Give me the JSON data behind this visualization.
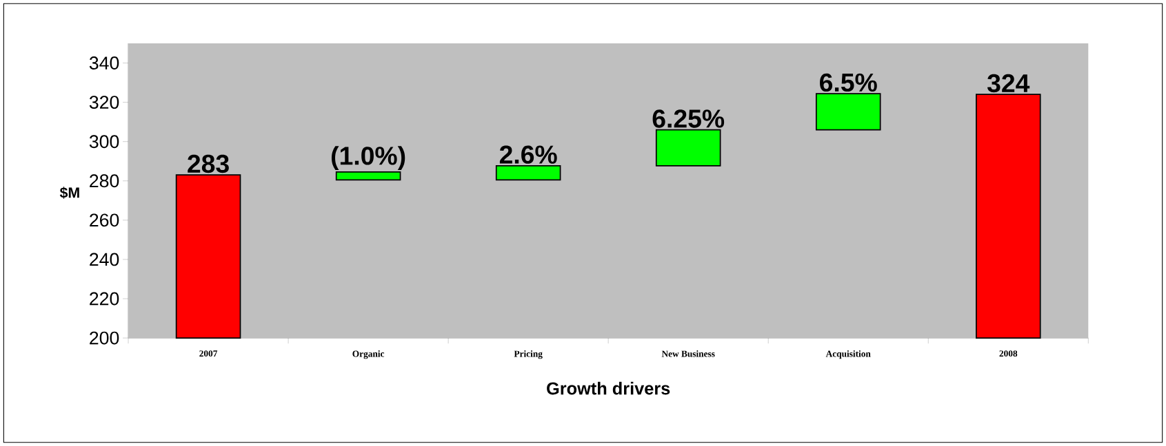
{
  "chart_data": {
    "type": "bar",
    "xlabel": "Growth drivers",
    "ylabel": "$M",
    "categories": [
      "2007",
      "Organic",
      "Pricing",
      "New Business",
      "Acquisition",
      "2008"
    ],
    "values": [
      283,
      4,
      7.2,
      18.3,
      18.4,
      324
    ],
    "base": [
      null,
      280.5,
      280.5,
      287.7,
      306,
      null
    ],
    "colors": [
      "#ff0000",
      "#00ff00",
      "#00ff00",
      "#00ff00",
      "#00ff00",
      "#ff0000"
    ],
    "value_labels": [
      "283",
      null,
      null,
      null,
      null,
      "324"
    ],
    "annotations": [
      {
        "text": "(1.0%)",
        "x": "Organic",
        "y": 284.5
      },
      {
        "text": "2.6%",
        "x": "Pricing",
        "y": 287.7
      },
      {
        "text": "6.25%",
        "x": "New Business",
        "y": 306
      },
      {
        "text": "6.5%",
        "x": "Acquisition",
        "y": 324.4
      }
    ],
    "ylim": [
      200,
      350
    ],
    "yticks": [
      200,
      220,
      240,
      260,
      280,
      300,
      320,
      340
    ]
  }
}
